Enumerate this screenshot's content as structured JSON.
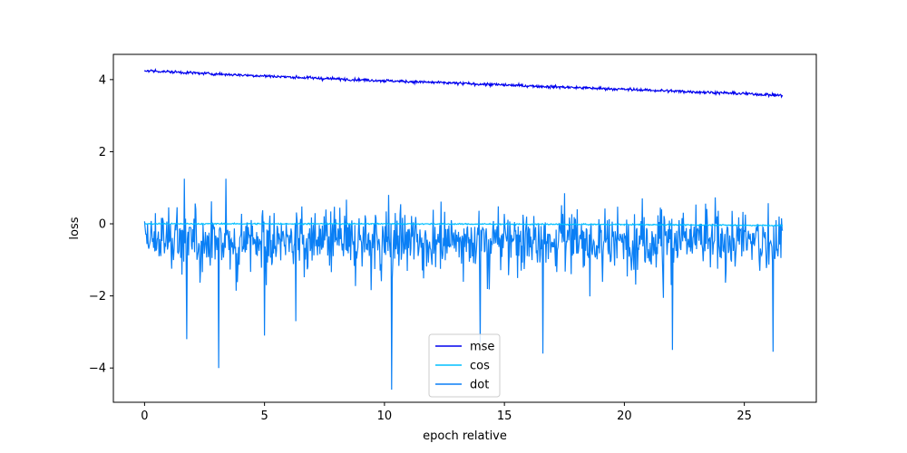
{
  "chart_data": {
    "type": "line",
    "xlabel": "epoch relative",
    "ylabel": "loss",
    "xlim": [
      -1.3,
      28.0
    ],
    "ylim": [
      -4.95,
      4.7
    ],
    "x_ticks": [
      0,
      5,
      10,
      15,
      20,
      25
    ],
    "x_tick_labels": [
      "0",
      "5",
      "10",
      "15",
      "20",
      "25"
    ],
    "y_ticks": [
      -4,
      -2,
      0,
      2,
      4
    ],
    "y_tick_labels": [
      "−4",
      "−2",
      "0",
      "2",
      "4"
    ],
    "grid": false,
    "legend_position": "bottom-center",
    "x_range": [
      0,
      26.6
    ],
    "series": [
      {
        "name": "mse",
        "color": "#0000ee",
        "x": [
          0,
          2.5,
          5,
          7.5,
          10,
          12.5,
          15,
          17.5,
          20,
          22.5,
          25,
          26.6
        ],
        "values": [
          4.25,
          4.17,
          4.1,
          4.03,
          3.97,
          3.91,
          3.85,
          3.79,
          3.73,
          3.67,
          3.61,
          3.56
        ]
      },
      {
        "name": "cos",
        "color": "#00bfff",
        "x": [
          0,
          5,
          10,
          15,
          20,
          25,
          26.6
        ],
        "values": [
          0.0,
          0.0,
          0.0,
          -0.01,
          -0.02,
          -0.04,
          -0.05
        ]
      },
      {
        "name": "dot",
        "color": "#0a7ff5",
        "x": [
          0,
          26.6
        ],
        "values_summary": {
          "mean": -0.45,
          "min": -4.6,
          "max": 1.25
        },
        "notable_points": [
          {
            "x": 1.75,
            "y": -3.2
          },
          {
            "x": 3.1,
            "y": -4.0
          },
          {
            "x": 5.0,
            "y": -3.1
          },
          {
            "x": 6.3,
            "y": -2.7
          },
          {
            "x": 10.3,
            "y": -4.6
          },
          {
            "x": 14.0,
            "y": -3.3
          },
          {
            "x": 16.6,
            "y": -3.6
          },
          {
            "x": 22.0,
            "y": -3.5
          },
          {
            "x": 26.2,
            "y": -3.55
          },
          {
            "x": 1.65,
            "y": 1.25
          },
          {
            "x": 3.4,
            "y": 1.25
          },
          {
            "x": 17.5,
            "y": 0.85
          }
        ]
      }
    ]
  }
}
